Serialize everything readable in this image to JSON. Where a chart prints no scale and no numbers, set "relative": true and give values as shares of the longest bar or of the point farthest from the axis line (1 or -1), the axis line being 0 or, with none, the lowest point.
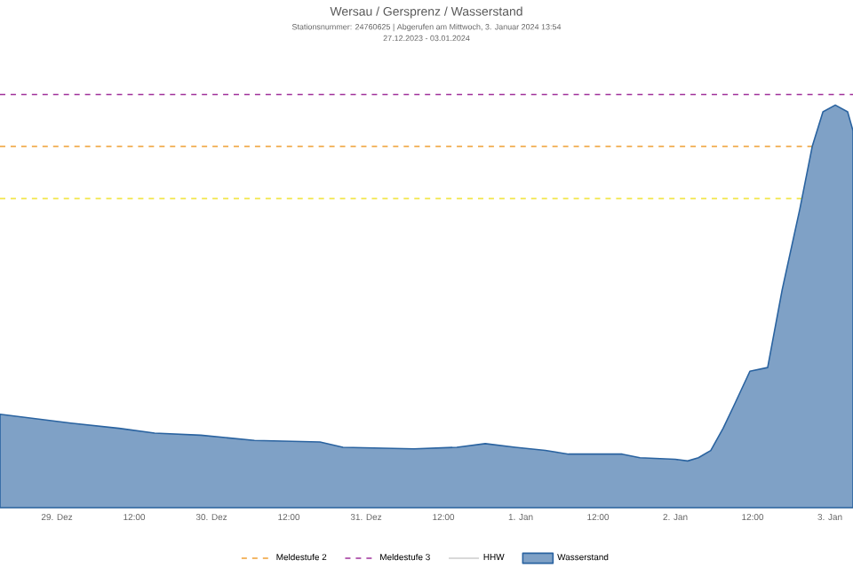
{
  "chart_data": {
    "type": "area",
    "title": "Wersau / Gersprenz / Wasserstand",
    "subtitle": "Stationsnummer: 24760625 | Abgerufen am Mittwoch, 3. Januar 2024 13:54",
    "annotations": [
      "27.12.2023 - 03.01.2024"
    ],
    "relative": true,
    "legend": "bottom",
    "xlim": [
      "2023-12-28T15:10",
      "2024-01-03T03:35"
    ],
    "xticks": [
      {
        "value": "2023-12-29",
        "label": "29. Dez"
      },
      {
        "value": "2023-12-29T12:00",
        "label": "12:00"
      },
      {
        "value": "2023-12-30",
        "label": "30. Dez"
      },
      {
        "value": "2023-12-30T12:00",
        "label": "12:00"
      },
      {
        "value": "2023-12-31",
        "label": "31. Dez"
      },
      {
        "value": "2023-12-31T12:00",
        "label": "12:00"
      },
      {
        "value": "2024-01-01",
        "label": "1. Jan"
      },
      {
        "value": "2024-01-01T12:00",
        "label": "12:00"
      },
      {
        "value": "2024-01-02",
        "label": "2. Jan"
      },
      {
        "value": "2024-01-02T12:00",
        "label": "12:00"
      },
      {
        "value": "2024-01-03",
        "label": "3. Jan"
      }
    ],
    "ref_lines": [
      {
        "axis": "y",
        "value": 0.768,
        "color": "#f2e64a",
        "line_style": "dashed"
      },
      {
        "axis": "y",
        "value": 0.897,
        "label": "Meldestufe 2",
        "color": "#f0a035",
        "line_style": "dashed"
      },
      {
        "axis": "y",
        "value": 1.026,
        "label": "Meldestufe 3",
        "color": "#a0309a",
        "line_style": "dashed"
      }
    ],
    "series": [
      {
        "name": "HHW",
        "type": "line",
        "color": "#cccccc"
      },
      {
        "name": "Wasserstand",
        "color": "#2a63a0",
        "x": [
          "2023-12-28T15:10",
          "2023-12-29T02:10",
          "2023-12-29T09:40",
          "2023-12-29T15:10",
          "2023-12-29T22:20",
          "2023-12-30T06:40",
          "2023-12-30T16:50",
          "2023-12-30T20:25",
          "2023-12-31T07:25",
          "2023-12-31T14:05",
          "2023-12-31T18:30",
          "2023-12-31T23:10",
          "2024-01-01T03:50",
          "2024-01-01T07:25",
          "2024-01-01T15:45",
          "2024-01-01T18:30",
          "2024-01-02T00:00",
          "2024-01-02T01:55",
          "2024-01-02T03:35",
          "2024-01-02T05:30",
          "2024-01-02T07:25",
          "2024-01-02T09:05",
          "2024-01-02T11:35",
          "2024-01-02T14:20",
          "2024-01-02T16:35",
          "2024-01-02T19:20",
          "2024-01-02T21:15",
          "2024-01-02T22:55",
          "2024-01-03T00:50",
          "2024-01-03T02:45",
          "2024-01-03T03:35"
        ],
        "values": [
          0.232,
          0.21,
          0.197,
          0.185,
          0.18,
          0.167,
          0.163,
          0.15,
          0.146,
          0.15,
          0.159,
          0.15,
          0.142,
          0.133,
          0.133,
          0.124,
          0.12,
          0.116,
          0.124,
          0.142,
          0.197,
          0.253,
          0.339,
          0.348,
          0.541,
          0.742,
          0.897,
          0.983,
          1.0,
          0.983,
          0.936
        ]
      }
    ]
  }
}
